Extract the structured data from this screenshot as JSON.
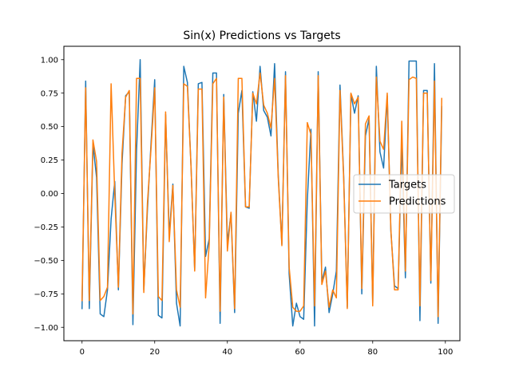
{
  "chart_data": {
    "type": "line",
    "title": "Sin(x) Predictions vs Targets",
    "xlabel": "",
    "ylabel": "",
    "xlim": [
      -5,
      104
    ],
    "ylim": [
      -1.1,
      1.1
    ],
    "xticks": [
      0,
      20,
      40,
      60,
      80,
      100
    ],
    "xtick_labels": [
      "0",
      "20",
      "40",
      "60",
      "80",
      "100"
    ],
    "yticks": [
      -1.0,
      -0.75,
      -0.5,
      -0.25,
      0.0,
      0.25,
      0.5,
      0.75,
      1.0
    ],
    "ytick_labels": [
      "−1.00",
      "−0.75",
      "−0.50",
      "−0.25",
      "0.00",
      "0.25",
      "0.50",
      "0.75",
      "1.00"
    ],
    "grid": false,
    "legend_position": "center-right",
    "x": [
      0,
      1,
      2,
      3,
      4,
      5,
      6,
      7,
      8,
      9,
      10,
      11,
      12,
      13,
      14,
      15,
      16,
      17,
      18,
      19,
      20,
      21,
      22,
      23,
      24,
      25,
      26,
      27,
      28,
      29,
      30,
      31,
      32,
      33,
      34,
      35,
      36,
      37,
      38,
      39,
      40,
      41,
      42,
      43,
      44,
      45,
      46,
      47,
      48,
      49,
      50,
      51,
      52,
      53,
      54,
      55,
      56,
      57,
      58,
      59,
      60,
      61,
      62,
      63,
      64,
      65,
      66,
      67,
      68,
      69,
      70,
      71,
      72,
      73,
      74,
      75,
      76,
      77,
      78,
      79,
      80,
      81,
      82,
      83,
      84,
      85,
      86,
      87,
      88,
      89,
      90,
      91,
      92,
      93,
      94,
      95,
      96,
      97,
      98,
      99
    ],
    "series": [
      {
        "name": "Targets",
        "color": "#1f77b4",
        "values": [
          -0.86,
          0.84,
          -0.86,
          0.37,
          0.12,
          -0.9,
          -0.92,
          -0.72,
          -0.19,
          0.09,
          -0.72,
          0.22,
          0.73,
          0.76,
          -0.98,
          0.32,
          1.0,
          -0.72,
          -0.12,
          0.38,
          0.85,
          -0.91,
          -0.93,
          0.59,
          -0.31,
          0.07,
          -0.82,
          -0.99,
          0.95,
          0.83,
          0.2,
          -0.57,
          0.82,
          0.83,
          -0.47,
          -0.34,
          0.9,
          0.9,
          -0.97,
          0.74,
          -0.37,
          -0.15,
          -0.89,
          0.6,
          0.77,
          -0.1,
          -0.11,
          0.76,
          0.54,
          0.95,
          0.62,
          0.57,
          0.43,
          0.97,
          0.14,
          -0.38,
          0.91,
          -0.6,
          -0.99,
          -0.82,
          -0.92,
          -0.94,
          -0.05,
          0.48,
          -0.99,
          0.91,
          -0.66,
          -0.55,
          -0.89,
          -0.75,
          -0.58,
          0.81,
          0.14,
          -0.85,
          0.74,
          0.6,
          0.73,
          -0.75,
          0.43,
          0.56,
          -0.82,
          0.95,
          0.31,
          0.19,
          0.73,
          -0.28,
          -0.69,
          -0.71,
          0.39,
          -0.63,
          0.99,
          0.99,
          0.99,
          -0.95,
          0.77,
          0.77,
          -0.67,
          0.97,
          -0.97,
          0.65
        ]
      },
      {
        "name": "Predictions",
        "color": "#ff7f0e",
        "values": [
          -0.8,
          0.79,
          -0.8,
          0.4,
          0.24,
          -0.8,
          -0.77,
          -0.7,
          0.82,
          0.0,
          -0.7,
          0.3,
          0.72,
          0.77,
          -0.9,
          0.86,
          0.86,
          -0.74,
          -0.07,
          0.34,
          0.79,
          -0.77,
          -0.8,
          0.61,
          -0.36,
          0.06,
          -0.72,
          -0.85,
          0.82,
          0.8,
          0.2,
          -0.58,
          0.78,
          0.78,
          -0.78,
          -0.38,
          0.82,
          0.86,
          -0.88,
          0.72,
          -0.43,
          -0.14,
          -0.86,
          0.86,
          0.86,
          -0.1,
          -0.1,
          0.75,
          0.67,
          0.9,
          0.66,
          0.6,
          0.49,
          0.86,
          0.12,
          -0.39,
          0.88,
          -0.55,
          -0.85,
          -0.88,
          -0.88,
          -0.84,
          0.53,
          0.44,
          -0.84,
          0.88,
          -0.68,
          -0.58,
          -0.85,
          -0.72,
          -0.78,
          0.77,
          0.12,
          -0.86,
          0.75,
          0.67,
          0.72,
          -0.71,
          0.52,
          0.58,
          -0.84,
          0.87,
          0.39,
          0.33,
          0.75,
          -0.27,
          -0.72,
          -0.72,
          0.54,
          -0.58,
          0.85,
          0.87,
          0.86,
          -0.84,
          0.75,
          0.75,
          -0.65,
          0.84,
          -0.92,
          0.71
        ]
      }
    ]
  }
}
